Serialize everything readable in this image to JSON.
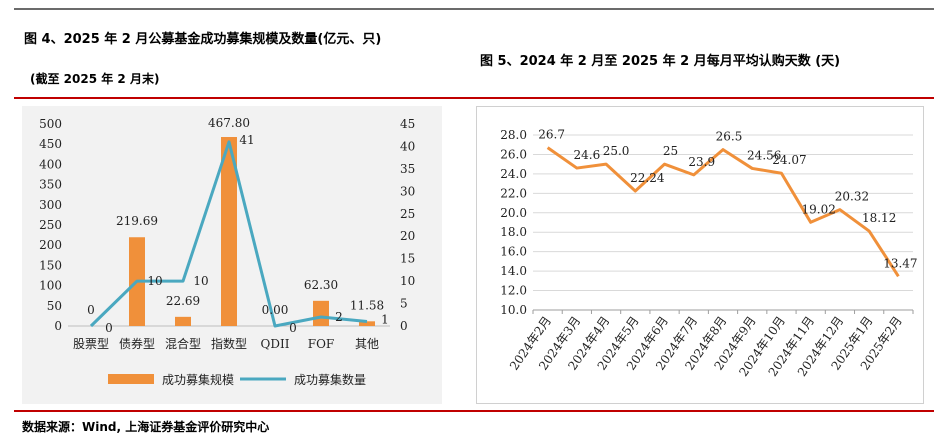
{
  "colors": {
    "bar": "#f0903a",
    "line_left": "#4aa8c0",
    "line_right": "#f0903a",
    "rule_dark": "#6b6b6b",
    "rule_red": "#c00000",
    "panel_bg": "#f2f2f2"
  },
  "figure4": {
    "title": "图 4、2025 年 2 月公募基金成功募集规模及数量(亿元、只)",
    "subtitle": "(截至 2025 年 2 月末)"
  },
  "figure5": {
    "title": "图 5、2024 年 2 月至 2025 年 2 月每月平均认购天数 (天)"
  },
  "source": "数据来源：Wind,   上海证券基金评价研究中心",
  "chart_data": [
    {
      "type": "bar+line",
      "categories": [
        "股票型",
        "债券型",
        "混合型",
        "指数型",
        "QDII",
        "FOF",
        "其他"
      ],
      "series": [
        {
          "name": "成功募集规模",
          "kind": "bar",
          "axis": "left",
          "values": [
            0,
            219.69,
            22.69,
            467.8,
            0.0,
            62.3,
            11.58
          ],
          "labels": [
            "0",
            "219.69",
            "22.69",
            "467.80",
            "0.00",
            "62.30",
            "11.58"
          ]
        },
        {
          "name": "成功募集数量",
          "kind": "line",
          "axis": "right",
          "values": [
            0,
            10,
            10,
            41,
            0,
            2,
            1
          ],
          "labels": [
            "0",
            "10",
            "10",
            "41",
            "0",
            "2",
            "1"
          ]
        }
      ],
      "y_left": {
        "min": 0,
        "max": 500,
        "step": 50,
        "ticks": [
          "0",
          "50",
          "100",
          "150",
          "200",
          "250",
          "300",
          "350",
          "400",
          "450",
          "500"
        ]
      },
      "y_right": {
        "min": 0,
        "max": 45,
        "step": 5,
        "ticks": [
          "0",
          "5",
          "10",
          "15",
          "20",
          "25",
          "30",
          "35",
          "40",
          "45"
        ]
      },
      "legend_position": "bottom"
    },
    {
      "type": "line",
      "categories": [
        "2024年2月",
        "2024年3月",
        "2024年4月",
        "2024年5月",
        "2024年6月",
        "2024年7月",
        "2024年8月",
        "2024年9月",
        "2024年10月",
        "2024年11月",
        "2024年12月",
        "2025年1月",
        "2025年2月"
      ],
      "series": [
        {
          "name": "平均认购天数",
          "values": [
            26.7,
            24.6,
            25.0,
            22.24,
            25,
            23.9,
            26.5,
            24.56,
            24.07,
            19.02,
            20.32,
            18.12,
            13.47
          ],
          "labels": [
            "26.7",
            "24.6",
            "25.0",
            "22.24",
            "25",
            "23.9",
            "26.5",
            "24.56",
            "24.07",
            "19.02",
            "20.32",
            "18.12",
            "13.47"
          ]
        }
      ],
      "y": {
        "min": 10.0,
        "max": 28.0,
        "step": 2.0,
        "ticks": [
          "10.0",
          "12.0",
          "14.0",
          "16.0",
          "18.0",
          "20.0",
          "22.0",
          "24.0",
          "26.0",
          "28.0"
        ]
      },
      "grid": true,
      "legend": "none"
    }
  ]
}
